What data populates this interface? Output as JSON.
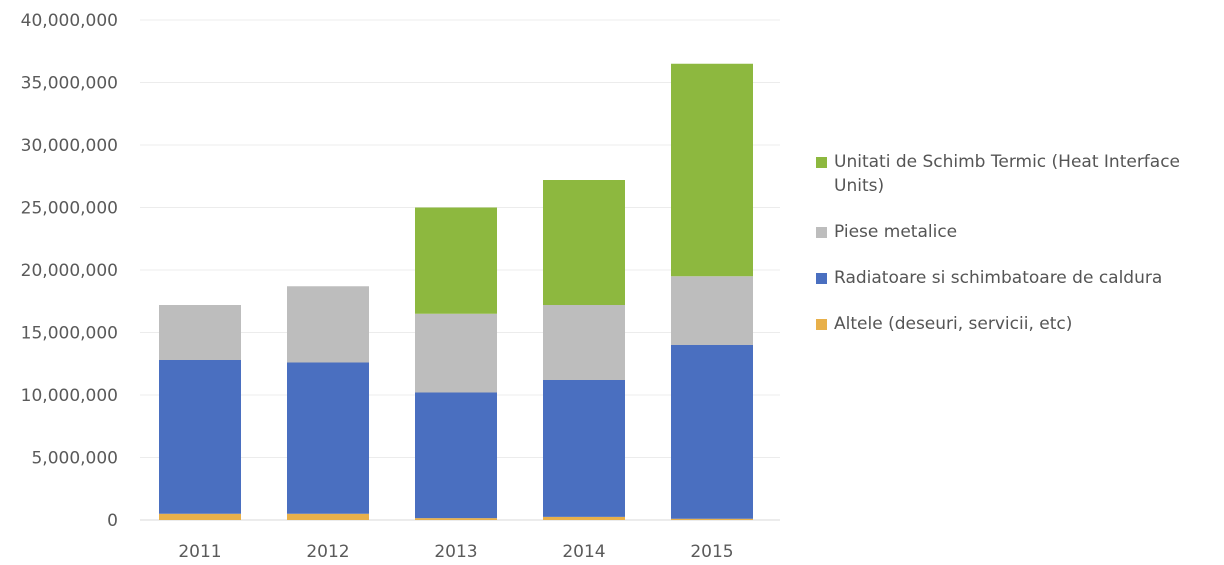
{
  "chart_data": {
    "type": "bar",
    "stacked": true,
    "categories": [
      "2011",
      "2012",
      "2013",
      "2014",
      "2015"
    ],
    "series": [
      {
        "name": "Altele (deseuri, servicii, etc)",
        "color": "#e8b04a",
        "values": [
          500000,
          500000,
          150000,
          250000,
          100000
        ]
      },
      {
        "name": "Radiatoare si schimbatoare de caldura",
        "color": "#4a6fc0",
        "values": [
          12300000,
          12100000,
          10050000,
          10950000,
          13900000
        ]
      },
      {
        "name": "Piese metalice",
        "color": "#bdbdbd",
        "values": [
          4400000,
          6100000,
          6300000,
          6000000,
          5500000
        ]
      },
      {
        "name": "Unitati de Schimb Termic (Heat Interface Units)",
        "color": "#8db83f",
        "values": [
          0,
          0,
          8500000,
          10000000,
          17000000
        ]
      }
    ],
    "ylim": [
      0,
      40000000
    ],
    "yticks": [
      "0",
      "5,000,000",
      "10,000,000",
      "15,000,000",
      "20,000,000",
      "25,000,000",
      "30,000,000",
      "35,000,000",
      "40,000,000"
    ],
    "legend_position": "right",
    "title": "",
    "xlabel": "",
    "ylabel": ""
  }
}
